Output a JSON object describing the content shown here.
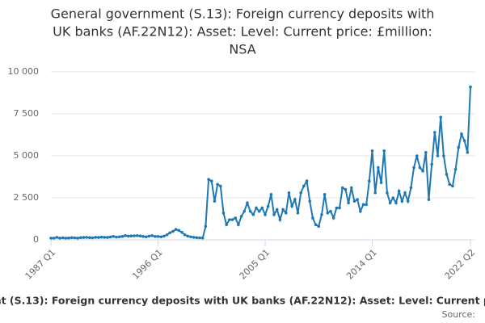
{
  "chart_data": {
    "type": "line",
    "title": [
      "General government (S.13): Foreign currency deposits with",
      "UK banks (AF.22N12): Asset: Level: Current price: £million:",
      "NSA"
    ],
    "categories": [
      "1987 Q1",
      null,
      null,
      null,
      null,
      null,
      null,
      null,
      null,
      null,
      null,
      null,
      null,
      null,
      null,
      null,
      null,
      null,
      null,
      null,
      null,
      null,
      null,
      null,
      null,
      null,
      null,
      null,
      null,
      null,
      null,
      null,
      null,
      null,
      null,
      null,
      "1996 Q1",
      null,
      null,
      null,
      null,
      null,
      null,
      null,
      null,
      null,
      null,
      null,
      null,
      null,
      null,
      null,
      null,
      null,
      null,
      null,
      null,
      null,
      null,
      null,
      null,
      null,
      null,
      null,
      null,
      null,
      null,
      null,
      null,
      null,
      null,
      null,
      "2005 Q1",
      null,
      null,
      null,
      null,
      null,
      null,
      null,
      null,
      null,
      null,
      null,
      null,
      null,
      null,
      null,
      null,
      null,
      null,
      null,
      null,
      null,
      null,
      null,
      null,
      null,
      null,
      null,
      null,
      null,
      null,
      null,
      null,
      null,
      null,
      null,
      "2014 Q1",
      null,
      null,
      null,
      null,
      null,
      null,
      null,
      null,
      null,
      null,
      null,
      null,
      null,
      null,
      null,
      null,
      null,
      null,
      null,
      null,
      null,
      null,
      null,
      null,
      null,
      null,
      null,
      null,
      null,
      null,
      null,
      null,
      "2022 Q2"
    ],
    "series": [
      {
        "name": "General government (S.13): Foreign currency deposits with UK banks (AF.22N12): Asset: Level: Current price: £million: NSA",
        "color": "#1f78b4",
        "values": [
          100,
          100,
          150,
          100,
          120,
          100,
          110,
          130,
          120,
          100,
          130,
          140,
          150,
          130,
          120,
          150,
          140,
          160,
          150,
          140,
          170,
          200,
          160,
          180,
          200,
          250,
          220,
          230,
          240,
          250,
          230,
          200,
          180,
          220,
          250,
          200,
          200,
          180,
          220,
          300,
          420,
          500,
          620,
          560,
          450,
          300,
          220,
          180,
          150,
          130,
          120,
          110,
          800,
          3600,
          3500,
          2300,
          3300,
          3200,
          1600,
          900,
          1200,
          1200,
          1300,
          900,
          1400,
          1700,
          2200,
          1700,
          1500,
          1900,
          1700,
          1900,
          1500,
          2000,
          2700,
          1500,
          1800,
          1200,
          1800,
          1600,
          2800,
          2000,
          2400,
          1600,
          2800,
          3200,
          3500,
          2300,
          1300,
          900,
          800,
          1500,
          2700,
          1600,
          1700,
          1300,
          1900,
          1900,
          3100,
          3000,
          2200,
          3100,
          2300,
          2400,
          1700,
          2100,
          2100,
          3500,
          5300,
          2800,
          4300,
          3400,
          5300,
          2800,
          2200,
          2500,
          2200,
          2900,
          2300,
          2800,
          2300,
          3100,
          4300,
          5000,
          4300,
          4100,
          5200,
          2400,
          4500,
          6400,
          5000,
          7300,
          5000,
          3900,
          3300,
          3200,
          4200,
          5500,
          6300,
          5900,
          5200,
          9100
        ]
      }
    ],
    "ylim": [
      0,
      10000
    ],
    "yticks": [
      0,
      {
        "value": 2500,
        "label": "2 500"
      },
      {
        "value": 5000,
        "label": "5 000"
      },
      {
        "value": 7500,
        "label": "7 500"
      },
      {
        "value": 10000,
        "label": "10 000"
      }
    ],
    "source": "Source:"
  }
}
